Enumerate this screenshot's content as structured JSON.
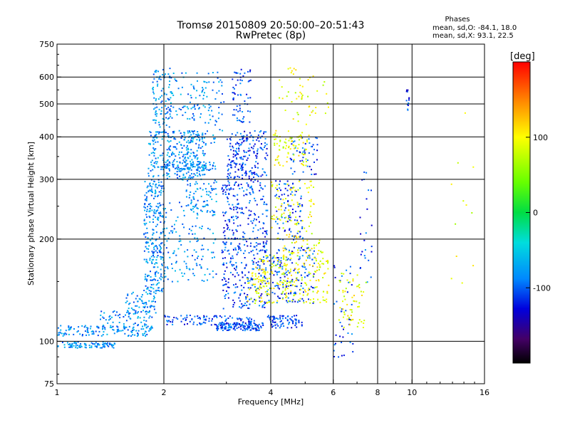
{
  "chart_data": {
    "type": "scatter",
    "title": "Tromsø 20150809 20:50:00–20:51:43",
    "subtitle": "RwPretec (8p)",
    "xlabel": "Frequency [MHz]",
    "ylabel": "Stationary phase Virtual Height [km]",
    "x_scale": "log",
    "y_scale": "log",
    "xlim": [
      1,
      16
    ],
    "ylim": [
      75,
      750
    ],
    "x_ticks": [
      1,
      2,
      4,
      6,
      8,
      10,
      16
    ],
    "y_ticks": [
      75,
      100,
      200,
      300,
      400,
      500,
      600,
      750
    ],
    "x_gridlines": [
      2,
      4,
      6,
      8,
      10
    ],
    "y_gridlines": [
      100,
      200,
      300,
      400,
      500,
      600
    ],
    "grid": true,
    "colorbar": {
      "label": "[deg]",
      "ticks": [
        100,
        0,
        -100
      ],
      "range": [
        -200,
        200
      ],
      "colormap": "rainbow"
    },
    "phases_box": {
      "heading": "Phases",
      "line_o": "mean, sd,O: -84.1, 18.0",
      "line_x": "mean, sd,X: 93.1, 22.5"
    },
    "series": [
      {
        "mode": "O",
        "color_value": -84,
        "segments": [
          {
            "f": [
              1.0,
              1.45
            ],
            "h": [
              96,
              100
            ],
            "n": 90
          },
          {
            "f": [
              1.0,
              1.85
            ],
            "h": [
              104,
              112
            ],
            "n": 130
          },
          {
            "f": [
              1.3,
              1.85
            ],
            "h": [
              110,
              125
            ],
            "n": 60
          },
          {
            "f": [
              1.55,
              1.9
            ],
            "h": [
              118,
              140
            ],
            "n": 70
          },
          {
            "f": [
              1.75,
              2.0
            ],
            "h": [
              140,
              300
            ],
            "n": 260
          },
          {
            "f": [
              1.8,
              2.6
            ],
            "h": [
              300,
              420
            ],
            "n": 320
          },
          {
            "f": [
              2.0,
              2.8
            ],
            "h": [
              320,
              340
            ],
            "n": 90
          },
          {
            "f": [
              1.85,
              2.1
            ],
            "h": [
              420,
              640
            ],
            "n": 90
          },
          {
            "f": [
              2.0,
              2.6
            ],
            "h": [
              450,
              620
            ],
            "n": 80
          },
          {
            "f": [
              1.85,
              2.8
            ],
            "h": [
              150,
              260
            ],
            "n": 160
          },
          {
            "f": [
              2.3,
              2.8
            ],
            "h": [
              240,
              300
            ],
            "n": 70
          },
          {
            "f": [
              2.6,
              2.95
            ],
            "h": [
              380,
              640
            ],
            "n": 50
          }
        ]
      },
      {
        "mode": "O-high",
        "color_value": -110,
        "segments": [
          {
            "f": [
              2.0,
              3.6
            ],
            "h": [
              112,
              120
            ],
            "n": 110
          },
          {
            "f": [
              2.8,
              3.8
            ],
            "h": [
              108,
              114
            ],
            "n": 120
          },
          {
            "f": [
              2.9,
              3.9
            ],
            "h": [
              125,
              300
            ],
            "n": 420
          },
          {
            "f": [
              3.0,
              3.9
            ],
            "h": [
              300,
              420
            ],
            "n": 200
          },
          {
            "f": [
              3.1,
              3.5
            ],
            "h": [
              440,
              640
            ],
            "n": 60
          },
          {
            "f": [
              3.9,
              4.9
            ],
            "h": [
              110,
              120
            ],
            "n": 80
          },
          {
            "f": [
              3.9,
              5.3
            ],
            "h": [
              130,
              190
            ],
            "n": 160
          },
          {
            "f": [
              4.1,
              4.9
            ],
            "h": [
              200,
              300
            ],
            "n": 90
          },
          {
            "f": [
              4.5,
              5.4
            ],
            "h": [
              310,
              400
            ],
            "n": 50
          },
          {
            "f": [
              6.0,
              6.8
            ],
            "h": [
              90,
              170
            ],
            "n": 40
          },
          {
            "f": [
              7.1,
              7.7
            ],
            "h": [
              150,
              330
            ],
            "n": 25
          },
          {
            "f": [
              9.6,
              9.8
            ],
            "h": [
              480,
              570
            ],
            "n": 14
          }
        ]
      },
      {
        "mode": "X",
        "color_value": 93,
        "segments": [
          {
            "f": [
              3.6,
              4.4
            ],
            "h": [
              130,
              180
            ],
            "n": 90
          },
          {
            "f": [
              4.3,
              5.8
            ],
            "h": [
              130,
              200
            ],
            "n": 160
          },
          {
            "f": [
              4.0,
              5.3
            ],
            "h": [
              200,
              300
            ],
            "n": 90
          },
          {
            "f": [
              4.0,
              5.1
            ],
            "h": [
              330,
              420
            ],
            "n": 80
          },
          {
            "f": [
              4.2,
              5.8
            ],
            "h": [
              430,
              650
            ],
            "n": 50
          },
          {
            "f": [
              6.2,
              7.4
            ],
            "h": [
              110,
              160
            ],
            "n": 60
          },
          {
            "f": [
              3.4,
              4.0
            ],
            "h": [
              130,
              160
            ],
            "n": 30
          },
          {
            "f": [
              12.8,
              15.0
            ],
            "h": [
              140,
              540
            ],
            "n": 12
          }
        ]
      }
    ]
  }
}
